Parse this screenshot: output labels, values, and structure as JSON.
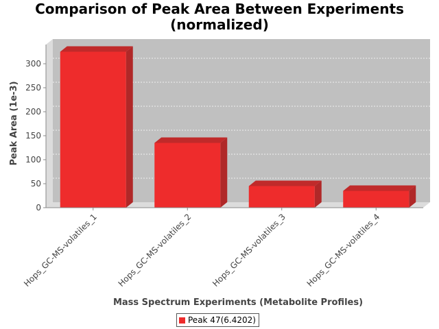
{
  "chart_data": {
    "type": "bar",
    "title_lines": [
      "Comparison of Peak Area Between Experiments",
      "(normalized)"
    ],
    "xlabel": "Mass Spectrum Experiments (Metabolite Profiles)",
    "ylabel": "Peak Area (1e-3)",
    "categories": [
      "Hops_GC-MS-volatiles_1",
      "Hops_GC-MS-volatiles_2",
      "Hops_GC-MS-volatiles_3",
      "Hops_GC-MS-volatiles_4"
    ],
    "series": [
      {
        "name": "Peak 47(6.4202)",
        "values": [
          325,
          135,
          45,
          35
        ],
        "color": "#ee2c2c"
      }
    ],
    "ylim": [
      0,
      340
    ],
    "yticks": [
      0,
      50,
      100,
      150,
      200,
      250,
      300
    ],
    "grid": true,
    "legend_position": "bottom"
  }
}
